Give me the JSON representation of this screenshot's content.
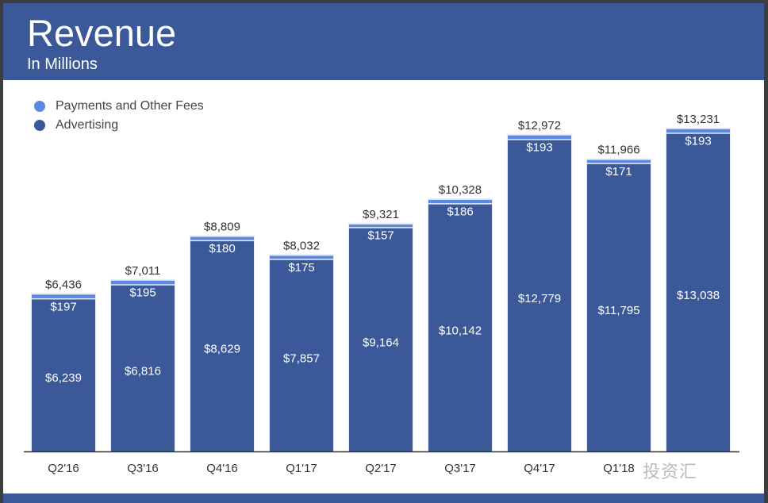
{
  "header": {
    "title": "Revenue",
    "subtitle": "In Millions"
  },
  "watermark": "投资汇",
  "colors": {
    "payments": "#5b8ae0",
    "advertising": "#3b5998",
    "header": "#3b5998"
  },
  "chart_data": {
    "type": "bar",
    "stacked": true,
    "title": "Revenue",
    "subtitle": "In Millions",
    "categories": [
      "Q2'16",
      "Q3'16",
      "Q4'16",
      "Q1'17",
      "Q2'17",
      "Q3'17",
      "Q4'17",
      "Q1'18",
      ""
    ],
    "series": [
      {
        "name": "Advertising",
        "values": [
          6239,
          6816,
          8629,
          7857,
          9164,
          10142,
          12779,
          11795,
          13038
        ],
        "labels": [
          "$6,239",
          "$6,816",
          "$8,629",
          "$7,857",
          "$9,164",
          "$10,142",
          "$12,779",
          "$11,795",
          "$13,038"
        ]
      },
      {
        "name": "Payments and Other Fees",
        "values": [
          197,
          195,
          180,
          175,
          157,
          186,
          193,
          171,
          193
        ],
        "labels": [
          "$197",
          "$195",
          "$180",
          "$175",
          "$157",
          "$186",
          "$193",
          "$171",
          "$193"
        ]
      }
    ],
    "totals": [
      6436,
      7011,
      8809,
      8032,
      9321,
      10328,
      12972,
      11966,
      13231
    ],
    "total_labels": [
      "$6,436",
      "$7,011",
      "$8,809",
      "$8,032",
      "$9,321",
      "$10,328",
      "$12,972",
      "$11,966",
      "$13,231"
    ],
    "legend": [
      "Payments and Other Fees",
      "Advertising"
    ],
    "legend_position": "top-left",
    "ylim": [
      0,
      14000
    ],
    "grid": false
  }
}
